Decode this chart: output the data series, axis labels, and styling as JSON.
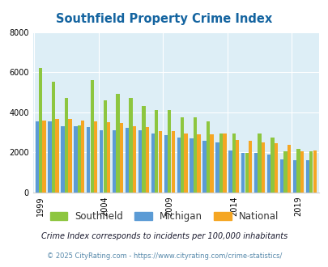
{
  "title": "Southfield Property Crime Index",
  "years": [
    1999,
    2000,
    2001,
    2002,
    2003,
    2004,
    2005,
    2006,
    2007,
    2008,
    2009,
    2010,
    2011,
    2012,
    2013,
    2014,
    2015,
    2016,
    2017,
    2018,
    2019,
    2020
  ],
  "southfield": [
    6200,
    5500,
    4700,
    3350,
    5600,
    4600,
    4900,
    4700,
    4300,
    4100,
    4100,
    3750,
    3750,
    3550,
    2950,
    2950,
    1950,
    2950,
    2750,
    2050,
    2150,
    2050
  ],
  "michigan": [
    3550,
    3550,
    3300,
    3300,
    3250,
    3100,
    3100,
    3200,
    3100,
    2950,
    2850,
    2750,
    2700,
    2550,
    2500,
    2100,
    1950,
    1950,
    1900,
    1650,
    1600,
    1600
  ],
  "national": [
    3600,
    3650,
    3650,
    3600,
    3550,
    3500,
    3450,
    3300,
    3250,
    3050,
    3050,
    2950,
    2900,
    2900,
    2950,
    2600,
    2550,
    2500,
    2450,
    2350,
    2050,
    2100
  ],
  "colors": {
    "michigan": "#5b9bd5",
    "southfield": "#8dc63f",
    "national": "#f5a623"
  },
  "ylim": [
    0,
    8000
  ],
  "yticks": [
    0,
    2000,
    4000,
    6000,
    8000
  ],
  "xtick_labels": [
    "1999",
    "2004",
    "2009",
    "2014",
    "2019"
  ],
  "xtick_positions": [
    0,
    5,
    10,
    15,
    20
  ],
  "bg_color": "#ddeef6",
  "legend_labels": [
    "Southfield",
    "Michigan",
    "National"
  ],
  "footnote1": "Crime Index corresponds to incidents per 100,000 inhabitants",
  "footnote2": "© 2025 CityRating.com - https://www.cityrating.com/crime-statistics/",
  "title_color": "#1464a0",
  "footnote1_color": "#1a1a2e",
  "footnote2_color": "#5588aa"
}
